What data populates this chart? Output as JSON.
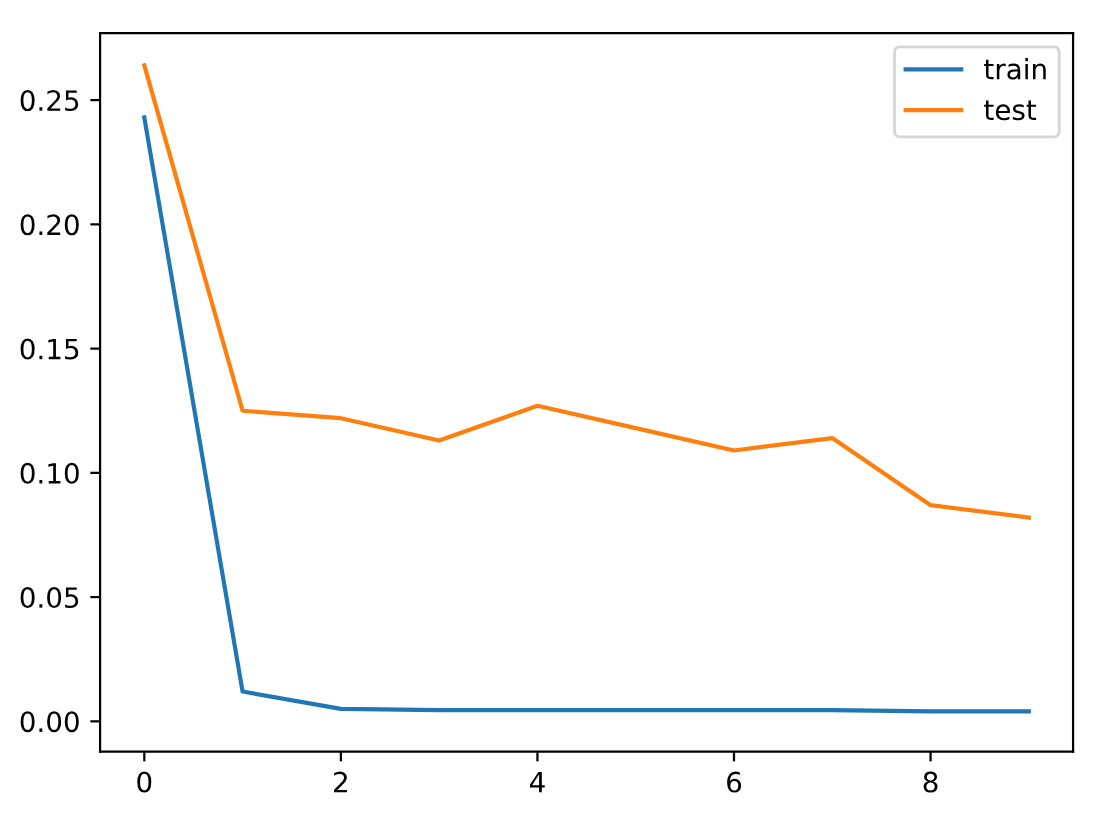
{
  "chart_data": {
    "type": "line",
    "x": [
      0,
      1,
      2,
      3,
      4,
      5,
      6,
      7,
      8,
      9
    ],
    "series": [
      {
        "name": "train",
        "color": "#1f77b4",
        "values": [
          0.243,
          0.012,
          0.005,
          0.0045,
          0.0045,
          0.0045,
          0.0045,
          0.0045,
          0.004,
          0.004
        ]
      },
      {
        "name": "test",
        "color": "#ff7f0e",
        "values": [
          0.264,
          0.125,
          0.122,
          0.113,
          0.127,
          0.118,
          0.109,
          0.114,
          0.087,
          0.082
        ]
      }
    ],
    "xlim": [
      -0.45,
      9.45
    ],
    "ylim": [
      -0.0122,
      0.277
    ],
    "xticks": [
      0,
      2,
      4,
      6,
      8
    ],
    "yticks": [
      {
        "value": 0,
        "label": "0.00"
      },
      {
        "value": 0.05,
        "label": "0.05"
      },
      {
        "value": 0.1,
        "label": "0.10"
      },
      {
        "value": 0.15,
        "label": "0.15"
      },
      {
        "value": 0.2,
        "label": "0.20"
      },
      {
        "value": 0.25,
        "label": "0.25"
      }
    ],
    "legend": "top right",
    "grid": false,
    "marker": "none",
    "line_style": "solid"
  }
}
